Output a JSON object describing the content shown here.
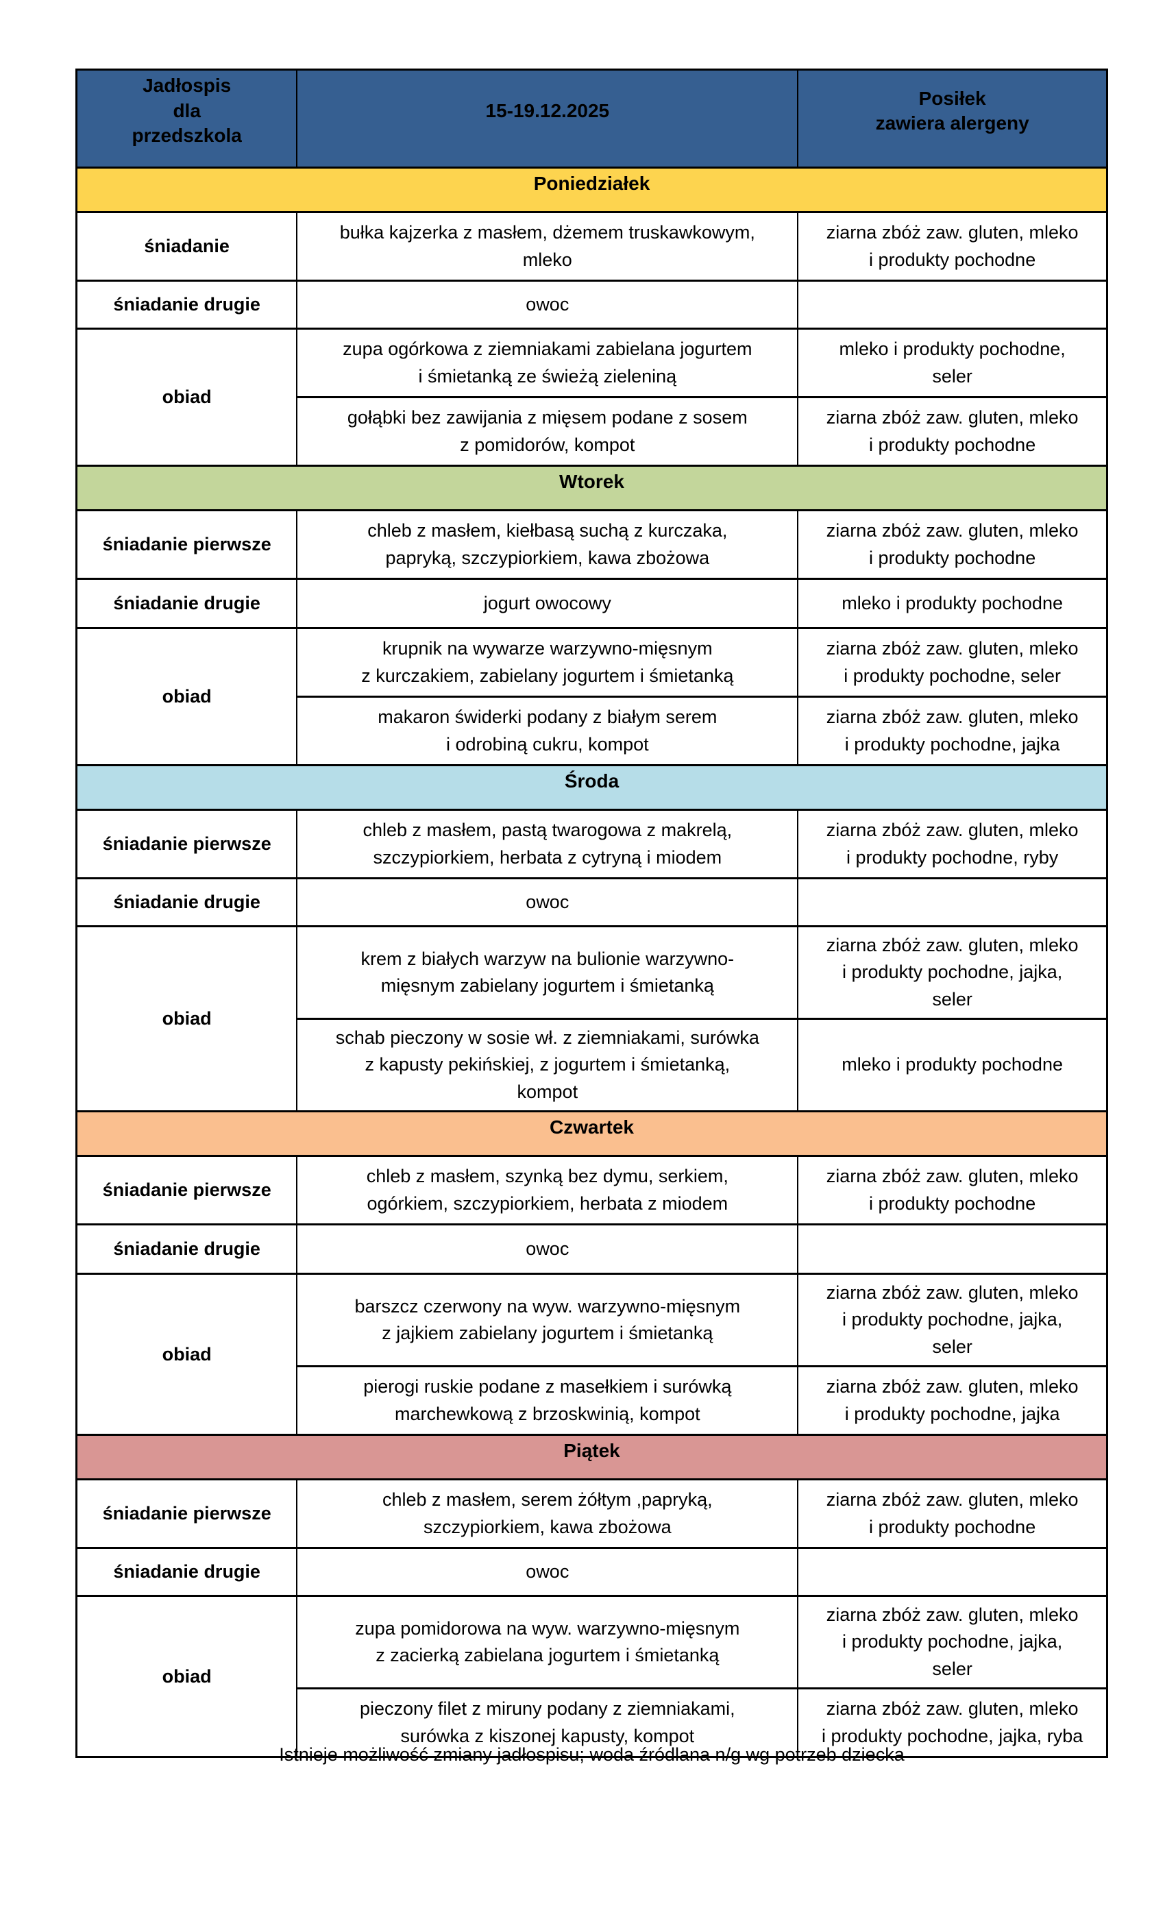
{
  "colors": {
    "header_bg": "#365F91",
    "border": "#000000",
    "text": "#000000"
  },
  "header": {
    "title": "Jadłospis\ndla\nprzedszkola",
    "date_range": "15-19.12.2025",
    "allergen_col": "Posiłek\nzawiera alergeny"
  },
  "footer_note": "Istnieje możliwość zmiany jadłospisu; woda źródlana n/g wg potrzeb dziecka",
  "days": [
    {
      "name": "Poniedziałek",
      "color": "#FDD44F",
      "rows": [
        {
          "label": "śniadanie",
          "meal": "bułka kajzerka z  masłem, dżemem truskawkowym,\nmleko",
          "allergens": "ziarna zbóż zaw. gluten, mleko\ni produkty pochodne"
        },
        {
          "label": "śniadanie drugie",
          "meal": "owoc",
          "allergens": ""
        }
      ],
      "dinner": {
        "label": "obiad",
        "courses": [
          {
            "meal": "zupa ogórkowa z ziemniakami zabielana jogurtem\ni śmietanką ze świeżą zieleniną",
            "allergens": "mleko i produkty pochodne,\nseler"
          },
          {
            "meal": "gołąbki bez zawijania z mięsem podane z sosem\nz pomidorów, kompot",
            "allergens": "ziarna zbóż zaw. gluten, mleko\ni produkty pochodne"
          }
        ]
      }
    },
    {
      "name": "Wtorek",
      "color": "#C3D69B",
      "rows": [
        {
          "label": "śniadanie pierwsze",
          "meal": "chleb z masłem, kiełbasą suchą z kurczaka,\npapryką, szczypiorkiem, kawa zbożowa",
          "allergens": "ziarna zbóż zaw. gluten, mleko\ni produkty pochodne"
        },
        {
          "label": "śniadanie drugie",
          "meal": "jogurt owocowy",
          "allergens": "mleko  i produkty pochodne"
        }
      ],
      "dinner": {
        "label": "obiad",
        "courses": [
          {
            "meal": "krupnik na wywarze warzywno-mięsnym\nz kurczakiem, zabielany jogurtem i śmietanką",
            "allergens": "ziarna zbóż zaw. gluten, mleko\ni produkty pochodne, seler"
          },
          {
            "meal": "makaron świderki podany z  białym serem\ni odrobiną cukru, kompot",
            "allergens": "ziarna zbóż zaw. gluten, mleko\ni produkty pochodne, jajka"
          }
        ]
      }
    },
    {
      "name": "Środa",
      "color": "#B6DDE8",
      "rows": [
        {
          "label": "śniadanie pierwsze",
          "meal": "chleb z masłem, pastą twarogowa z makrelą,\nszczypiorkiem, herbata z cytryną i miodem",
          "allergens": "ziarna zbóż zaw. gluten, mleko\ni produkty pochodne, ryby"
        },
        {
          "label": "śniadanie drugie",
          "meal": "owoc",
          "allergens": ""
        }
      ],
      "dinner": {
        "label": "obiad",
        "courses": [
          {
            "meal": "krem z białych warzyw na bulionie warzywno-\nmięsnym zabielany jogurtem i śmietanką",
            "allergens": "ziarna zbóż zaw. gluten, mleko\ni produkty pochodne, jajka,\nseler"
          },
          {
            "meal": "schab pieczony w sosie wł.  z ziemniakami, surówka\nz kapusty pekińskiej, z jogurtem i śmietanką,\nkompot",
            "allergens": "mleko i produkty pochodne"
          }
        ]
      }
    },
    {
      "name": "Czwartek",
      "color": "#FABF8F",
      "rows": [
        {
          "label": "śniadanie pierwsze",
          "meal": "chleb z masłem, szynką bez dymu, serkiem,\nogórkiem, szczypiorkiem, herbata z miodem",
          "allergens": "ziarna zbóż zaw. gluten, mleko\ni produkty pochodne"
        },
        {
          "label": "śniadanie drugie",
          "meal": "owoc",
          "allergens": ""
        }
      ],
      "dinner": {
        "label": "obiad",
        "courses": [
          {
            "meal": "barszcz czerwony na wyw. warzywno-mięsnym\nz jajkiem zabielany jogurtem i śmietanką",
            "allergens": "ziarna zbóż zaw. gluten, mleko\ni produkty pochodne, jajka,\nseler"
          },
          {
            "meal": "pierogi ruskie podane z masełkiem i surówką\nmarchewkową z brzoskwinią, kompot",
            "allergens": "ziarna zbóż zaw. gluten, mleko\ni produkty pochodne, jajka"
          }
        ]
      }
    },
    {
      "name": "Piątek",
      "color": "#D99694",
      "rows": [
        {
          "label": "śniadanie pierwsze",
          "meal": "chleb z masłem, serem żółtym ,papryką,\nszczypiorkiem, kawa zbożowa",
          "allergens": "ziarna zbóż zaw. gluten, mleko\ni produkty pochodne"
        },
        {
          "label": "śniadanie drugie",
          "meal": "owoc",
          "allergens": ""
        }
      ],
      "dinner": {
        "label": "obiad",
        "courses": [
          {
            "meal": "zupa pomidorowa na wyw. warzywno-mięsnym\nz zacierką zabielana jogurtem i śmietanką",
            "allergens": "ziarna zbóż zaw. gluten, mleko\ni produkty pochodne, jajka,\nseler"
          },
          {
            "meal": "pieczony filet z miruny podany z ziemniakami,\nsurówka z kiszonej kapusty, kompot",
            "allergens": "ziarna zbóż zaw. gluten, mleko\ni produkty pochodne, jajka, ryba"
          }
        ]
      }
    }
  ]
}
